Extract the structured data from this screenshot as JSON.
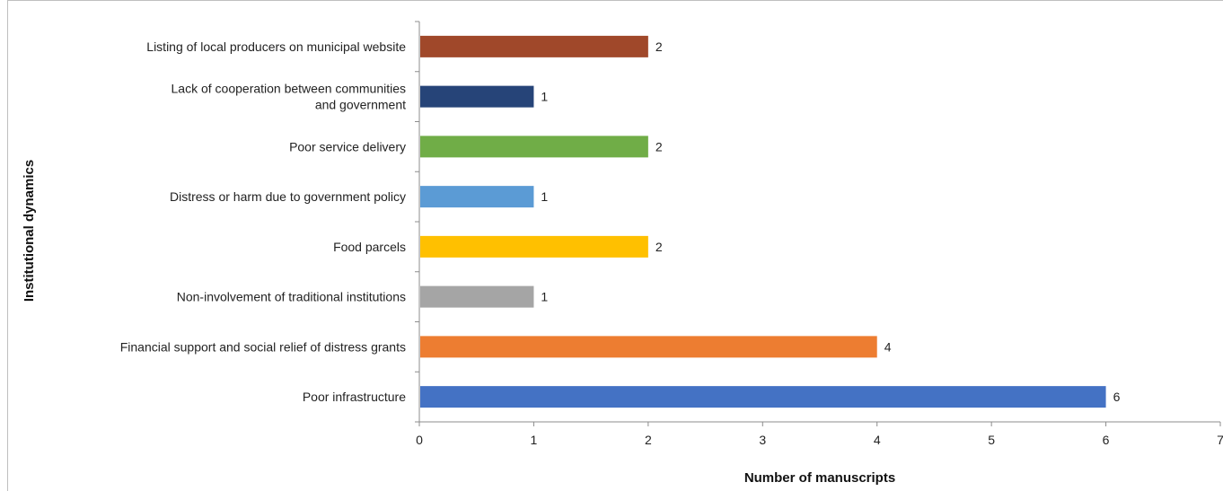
{
  "chart_data": {
    "type": "bar",
    "orientation": "horizontal",
    "categories": [
      "Listing of local producers on municipal website",
      "Lack of cooperation between communities and government",
      "Poor service delivery",
      "Distress or harm due to government policy",
      "Food parcels",
      "Non-involvement of traditional institutions",
      "Financial support and social relief of distress grants",
      "Poor infrastructure"
    ],
    "category_lines": [
      [
        "Listing of local producers on municipal website"
      ],
      [
        "Lack of cooperation between communities",
        "and government"
      ],
      [
        "Poor service delivery"
      ],
      [
        "Distress or harm due to government policy"
      ],
      [
        "Food parcels"
      ],
      [
        "Non-involvement of traditional institutions"
      ],
      [
        "Financial support and social relief of distress grants"
      ],
      [
        "Poor infrastructure"
      ]
    ],
    "values": [
      2,
      1,
      2,
      1,
      2,
      1,
      4,
      6
    ],
    "colors": [
      "#A0482A",
      "#264478",
      "#70AD47",
      "#5B9BD5",
      "#FFC000",
      "#A5A5A5",
      "#ED7D31",
      "#4472C4"
    ],
    "xlabel": "Number of manuscripts",
    "ylabel": "Institutional dynamics",
    "xlim": [
      0,
      7
    ],
    "xticks": [
      0,
      1,
      2,
      3,
      4,
      5,
      6,
      7
    ],
    "grid": false,
    "data_labels": true
  }
}
